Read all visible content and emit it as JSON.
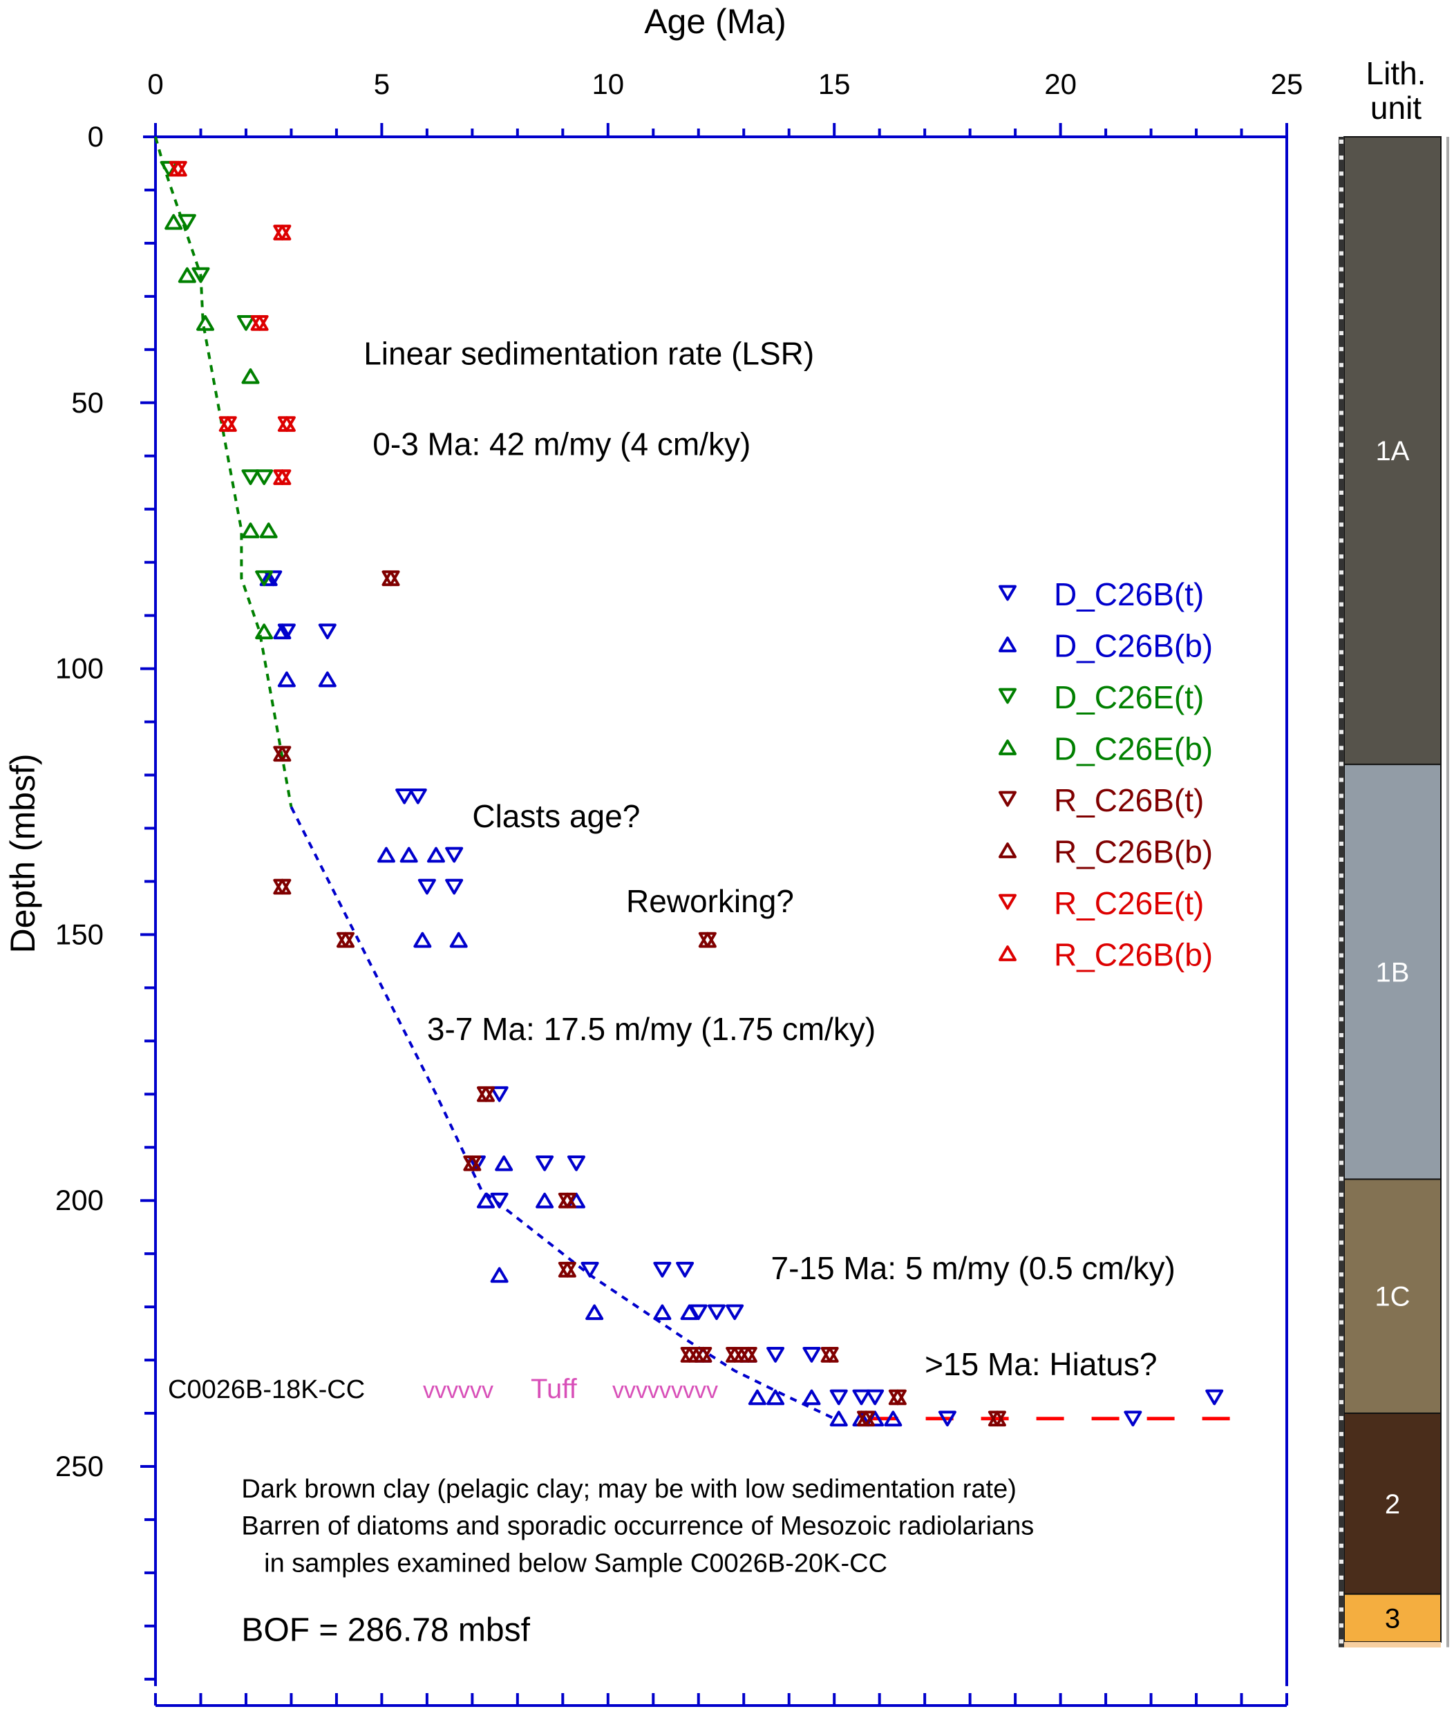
{
  "chart_data": {
    "type": "scatter",
    "title": "",
    "xlabel": "Age (Ma)",
    "ylabel": "Depth (mbsf)",
    "xlim": [
      0,
      25
    ],
    "ylim": [
      0,
      290
    ],
    "y_inverted": true,
    "x_axis_position": "top",
    "x_ticks": [
      "0",
      "5",
      "10",
      "15",
      "20",
      "25"
    ],
    "y_ticks": [
      "0",
      "50",
      "100",
      "150",
      "200",
      "250"
    ],
    "grid": false,
    "legend_position": "right-middle",
    "series": [
      {
        "name": "D_C26B(t)",
        "marker": "triangle-down",
        "color": "#0000CC",
        "points": [
          [
            2.6,
            83
          ],
          [
            2.9,
            93
          ],
          [
            3.8,
            93
          ],
          [
            5.5,
            124
          ],
          [
            5.8,
            124
          ],
          [
            6.6,
            135
          ],
          [
            6.0,
            141
          ],
          [
            6.6,
            141
          ],
          [
            7.6,
            180
          ],
          [
            7.1,
            193
          ],
          [
            8.6,
            193
          ],
          [
            9.3,
            193
          ],
          [
            7.6,
            200
          ],
          [
            9.6,
            213
          ],
          [
            11.2,
            213
          ],
          [
            11.7,
            213
          ],
          [
            12.0,
            221
          ],
          [
            12.4,
            221
          ],
          [
            12.8,
            221
          ],
          [
            13.7,
            229
          ],
          [
            14.5,
            229
          ],
          [
            15.1,
            237
          ],
          [
            15.6,
            237
          ],
          [
            15.9,
            237
          ],
          [
            17.5,
            241
          ],
          [
            21.6,
            241
          ],
          [
            23.4,
            237
          ]
        ]
      },
      {
        "name": "D_C26B(b)",
        "marker": "triangle-up",
        "color": "#0000CC",
        "points": [
          [
            2.5,
            83
          ],
          [
            2.8,
            93
          ],
          [
            2.9,
            102
          ],
          [
            3.8,
            102
          ],
          [
            5.1,
            135
          ],
          [
            5.6,
            135
          ],
          [
            6.2,
            135
          ],
          [
            5.9,
            151
          ],
          [
            6.7,
            151
          ],
          [
            7.7,
            193
          ],
          [
            7.3,
            200
          ],
          [
            8.6,
            200
          ],
          [
            9.3,
            200
          ],
          [
            7.6,
            214
          ],
          [
            9.7,
            221
          ],
          [
            11.2,
            221
          ],
          [
            11.8,
            221
          ],
          [
            12.1,
            229
          ],
          [
            13.1,
            229
          ],
          [
            13.3,
            237
          ],
          [
            13.7,
            237
          ],
          [
            14.5,
            237
          ],
          [
            15.1,
            241
          ],
          [
            15.6,
            241
          ],
          [
            15.9,
            241
          ],
          [
            16.3,
            241
          ]
        ]
      },
      {
        "name": "D_C26E(t)",
        "marker": "triangle-down",
        "color": "#008000",
        "points": [
          [
            0.3,
            6
          ],
          [
            0.7,
            16
          ],
          [
            1.0,
            26
          ],
          [
            2.0,
            35
          ],
          [
            2.1,
            64
          ],
          [
            2.4,
            64
          ],
          [
            2.4,
            83
          ]
        ]
      },
      {
        "name": "D_C26E(b)",
        "marker": "triangle-up",
        "color": "#008000",
        "points": [
          [
            0.4,
            16
          ],
          [
            0.7,
            26
          ],
          [
            1.1,
            35
          ],
          [
            2.1,
            45
          ],
          [
            2.1,
            74
          ],
          [
            2.5,
            74
          ],
          [
            2.4,
            93
          ]
        ]
      },
      {
        "name": "R_C26B(t)",
        "marker": "triangle-down",
        "color": "#800000",
        "points": [
          [
            5.2,
            83
          ],
          [
            2.8,
            116
          ],
          [
            2.8,
            141
          ],
          [
            4.2,
            151
          ],
          [
            12.2,
            151
          ],
          [
            7.3,
            180
          ],
          [
            7.0,
            193
          ],
          [
            9.1,
            200
          ],
          [
            9.1,
            213
          ],
          [
            11.8,
            229
          ],
          [
            12.1,
            229
          ],
          [
            12.8,
            229
          ],
          [
            13.1,
            229
          ],
          [
            14.9,
            229
          ],
          [
            16.4,
            237
          ],
          [
            15.7,
            241
          ],
          [
            18.6,
            241
          ]
        ]
      },
      {
        "name": "R_C26B(b)",
        "marker": "triangle-up",
        "color": "#800000",
        "points": [
          [
            5.2,
            83
          ],
          [
            2.8,
            116
          ],
          [
            2.8,
            141
          ],
          [
            4.2,
            151
          ],
          [
            12.2,
            151
          ],
          [
            7.3,
            180
          ],
          [
            7.0,
            193
          ],
          [
            9.1,
            200
          ],
          [
            9.1,
            213
          ],
          [
            11.8,
            229
          ],
          [
            12.1,
            229
          ],
          [
            12.8,
            229
          ],
          [
            13.1,
            229
          ],
          [
            14.9,
            229
          ],
          [
            16.4,
            237
          ],
          [
            15.7,
            241
          ],
          [
            18.6,
            241
          ]
        ]
      },
      {
        "name": "R_C26E(t)",
        "marker": "triangle-down",
        "color": "#DD0000",
        "points": [
          [
            0.5,
            6
          ],
          [
            2.8,
            18
          ],
          [
            2.3,
            35
          ],
          [
            1.6,
            54
          ],
          [
            2.9,
            54
          ],
          [
            2.8,
            64
          ]
        ]
      },
      {
        "name": "R_C26B(b)",
        "marker": "triangle-up",
        "color": "#DD0000",
        "points": [
          [
            0.5,
            6
          ],
          [
            2.8,
            18
          ],
          [
            2.3,
            35
          ],
          [
            1.6,
            54
          ],
          [
            2.9,
            54
          ],
          [
            2.8,
            64
          ]
        ]
      }
    ],
    "lines": [
      {
        "name": "LSR 0-3 Ma",
        "style": "dotted",
        "color": "#008000",
        "points": [
          [
            0,
            0
          ],
          [
            0.2,
            6
          ],
          [
            0.6,
            16
          ],
          [
            1.0,
            26
          ],
          [
            1.05,
            35
          ],
          [
            1.9,
            74
          ],
          [
            1.9,
            83
          ],
          [
            2.3,
            93
          ],
          [
            3.0,
            126
          ]
        ]
      },
      {
        "name": "LSR 3-15 Ma",
        "style": "dotted",
        "color": "#0000CC",
        "points": [
          [
            3.0,
            126
          ],
          [
            6.2,
            180
          ],
          [
            7.2,
            198
          ],
          [
            8.4,
            206
          ],
          [
            9.6,
            214
          ],
          [
            11.0,
            222
          ],
          [
            11.7,
            226
          ],
          [
            12.8,
            232
          ],
          [
            14.0,
            237
          ],
          [
            15.0,
            241
          ]
        ]
      },
      {
        "name": "Hiatus",
        "style": "dashed",
        "color": "#FF0000",
        "points": [
          [
            15.8,
            241
          ],
          [
            23.8,
            241
          ]
        ]
      }
    ],
    "annotations": [
      {
        "text": "Linear sedimentation rate (LSR)",
        "x": 4.6,
        "y": 41
      },
      {
        "text": "0-3 Ma: 42 m/my (4 cm/ky)",
        "x": 4.8,
        "y": 58
      },
      {
        "text": "Clasts age?",
        "x": 7.0,
        "y": 128
      },
      {
        "text": "Reworking?",
        "x": 10.4,
        "y": 144
      },
      {
        "text": "3-7 Ma: 17.5 m/my (1.75 cm/ky)",
        "x": 6.0,
        "y": 168
      },
      {
        "text": "7-15 Ma: 5 m/my (0.5 cm/ky)",
        "x": 13.6,
        "y": 213
      },
      {
        "text": ">15 Ma: Hiatus?",
        "x": 17.0,
        "y": 231
      },
      {
        "text": "Dark brown clay (pelagic clay; may be with low sedimentation rate)",
        "x": 1.9,
        "y": 254
      },
      {
        "text": "Barren of diatoms and sporadic occurrence of Mesozoic radiolarians",
        "x": 1.9,
        "y": 261
      },
      {
        "text": "in samples examined below Sample C0026B-20K-CC",
        "x": 2.4,
        "y": 268
      },
      {
        "text": "BOF = 286.78 mbsf",
        "x": 1.9,
        "y": 281
      }
    ],
    "tuff_marker": {
      "sample": "C0026B-18K-CC",
      "label": "Tuff",
      "pattern_left": "vvvvvv",
      "pattern_right": "vvvvvvvvv",
      "depth": 235,
      "color": "#D84FB8"
    },
    "lithology": {
      "title_line1": "Lith.",
      "title_line2": "unit",
      "units": [
        {
          "name": "1A",
          "top": 0,
          "bottom": 118,
          "color": "#56534B",
          "label_color": "#FFFFFF"
        },
        {
          "name": "1B",
          "top": 118,
          "bottom": 196,
          "color": "#929CA6",
          "label_color": "#FFFFFF"
        },
        {
          "name": "1C",
          "top": 196,
          "bottom": 240,
          "color": "#837253",
          "label_color": "#FFFFFF"
        },
        {
          "name": "2",
          "top": 240,
          "bottom": 274,
          "color": "#4A2D1B",
          "label_color": "#FFFFFF"
        },
        {
          "name": "3",
          "top": 274,
          "bottom": 283,
          "color": "#F4AE40",
          "label_color": "#000000"
        }
      ]
    }
  }
}
